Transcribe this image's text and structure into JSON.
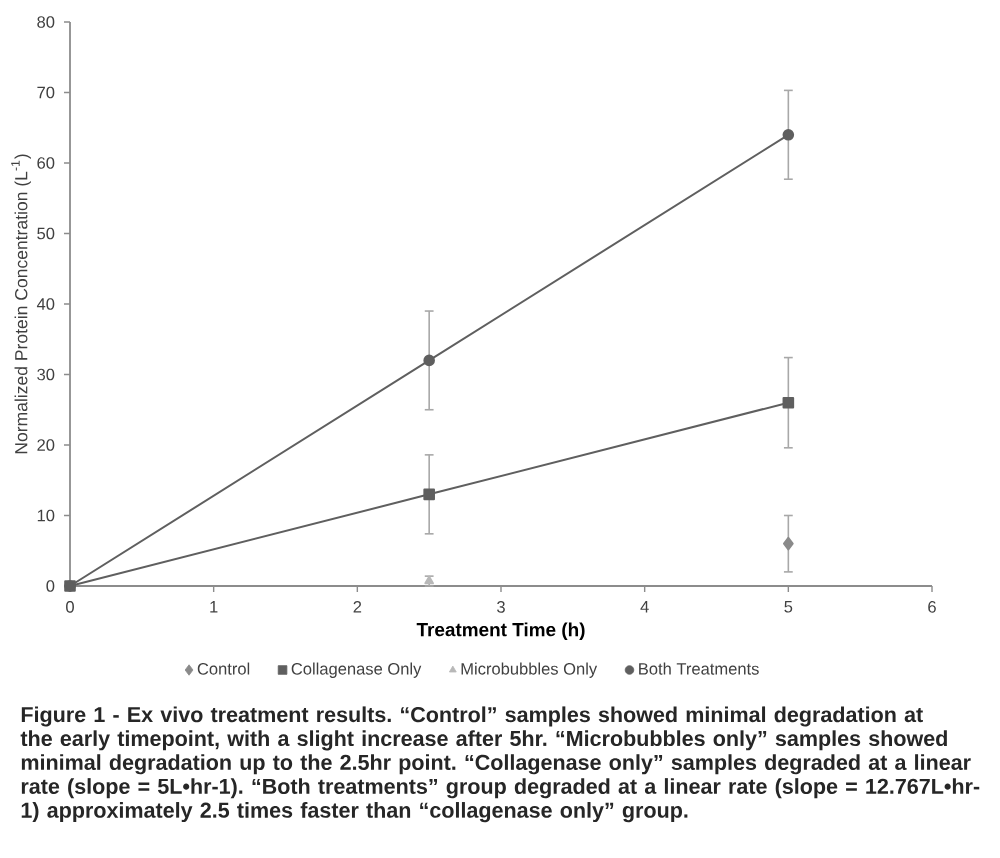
{
  "chart_data": {
    "type": "line",
    "xlabel": "Treatment Time (h)",
    "ylabel": "Normalized Protein Concentration (L$^{-1}$)",
    "x": [
      0,
      2.5,
      5
    ],
    "xlim": [
      0,
      6
    ],
    "xticks": [
      0,
      1,
      2,
      3,
      4,
      5,
      6
    ],
    "ylim": [
      0,
      80
    ],
    "yticks": [
      0,
      10,
      20,
      30,
      40,
      50,
      60,
      70,
      80
    ],
    "grid": false,
    "legend": "bottom",
    "series": [
      {
        "name": "Control",
        "type": "scatter",
        "marker": "diamond",
        "color": "#8a8a8a",
        "values": [
          null,
          null,
          6
        ],
        "errors": [
          null,
          null,
          4
        ]
      },
      {
        "name": "Collagenase Only",
        "type": "line",
        "marker": "square",
        "color": "#5f5f5f",
        "values": [
          0,
          13,
          26
        ],
        "errors": [
          null,
          5.6,
          6.4
        ]
      },
      {
        "name": "Microbubbles Only",
        "type": "scatter",
        "marker": "triangle",
        "color": "#b8b8b8",
        "values": [
          null,
          0.7,
          null
        ],
        "errors": [
          null,
          0.7,
          null
        ]
      },
      {
        "name": "Both Treatments",
        "type": "line",
        "marker": "circle",
        "color": "#5f5f5f",
        "values": [
          0,
          32,
          64
        ],
        "errors": [
          null,
          7,
          6.3
        ]
      }
    ],
    "annotations": [
      "Figure 1 - Ex vivo treatment results. “Control” samples showed minimal degradation at the early timepoint, with a slight increase after 5hr. “Microbubbles only” samples showed minimal degradation up to the 2.5hr point. “Collagenase only” samples degraded at a linear rate (slope = 5L•hr-1). “Both treatments” group degraded at a linear rate (slope = 12.767L•hr-1) approximately 2.5 times faster than “collagenase only” group."
    ]
  }
}
